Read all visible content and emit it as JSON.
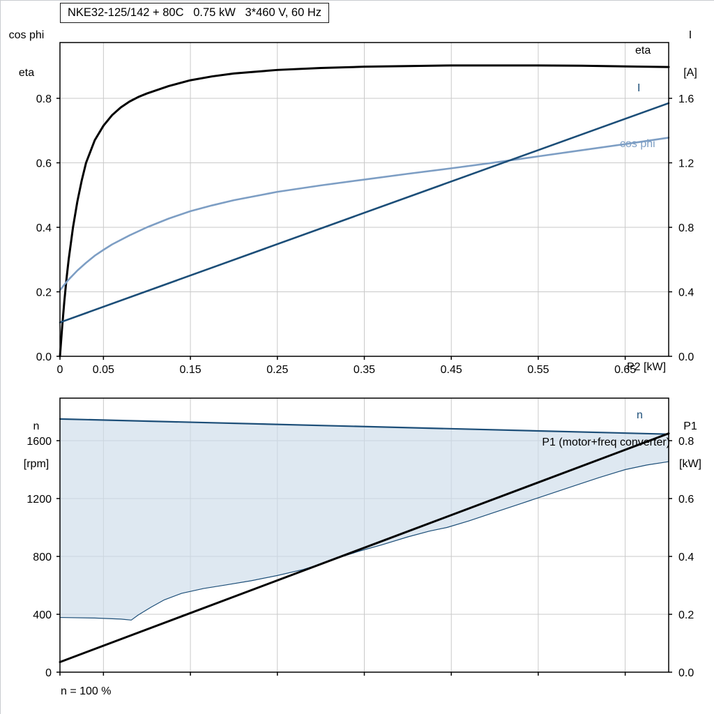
{
  "header": {
    "title": "NKE32-125/142 + 80C   0.75 kW   3*460 V, 60 Hz"
  },
  "labels": {
    "left_axis_line1": "cos phi",
    "left_axis_line2": "eta",
    "right_axis_line1": "I",
    "right_axis_line2": "[A]",
    "x_axis_label": "P2 [kW]",
    "curve_eta": "eta",
    "curve_current": "I",
    "curve_cos_phi": "cos phi",
    "bottom_left_axis_line1": "n",
    "bottom_left_axis_line2": "[rpm]",
    "bottom_right_axis_line1": "P1",
    "bottom_right_axis_line2": "[kW]",
    "curve_speed": "n",
    "curve_p1": "P1 (motor+freq converter)",
    "footnote": "n = 100 %"
  },
  "colors": {
    "black": "#000000",
    "dark_blue": "#1c4e78",
    "light_blue": "#7d9ec4",
    "area_fill": "#ccdbe9",
    "grid": "#c9c9c9"
  },
  "chart_data": [
    {
      "type": "line",
      "title": "NKE32-125/142 + 80C   0.75 kW   3*460 V, 60 Hz",
      "xlabel": "P2 [kW]",
      "ylabel_left": "cos phi / eta",
      "ylabel_right": "I [A]",
      "xlim": [
        0,
        0.7
      ],
      "ylim_left": [
        0,
        0.973
      ],
      "ylim_right": [
        0,
        1.946
      ],
      "grid": true,
      "grid_color": "#c9c9c9",
      "legend_position": "right-edge-inline-labels",
      "x_ticks": {
        "values": [
          0,
          0.05,
          0.15,
          0.25,
          0.35,
          0.45,
          0.55,
          0.65
        ],
        "labels": [
          "0",
          "0.05",
          "0.15",
          "0.25",
          "0.35",
          "0.45",
          "0.55",
          "0.65"
        ]
      },
      "left_ticks": {
        "values": [
          0,
          0.2,
          0.4,
          0.6,
          0.8
        ],
        "labels": [
          "0.0",
          "0.2",
          "0.4",
          "0.6",
          "0.8"
        ]
      },
      "right_ticks": {
        "values": [
          0,
          0.4,
          0.8,
          1.2,
          1.6
        ],
        "labels": [
          "0.0",
          "0.4",
          "0.8",
          "1.2",
          "1.6"
        ]
      },
      "series": [
        {
          "name": "eta",
          "axis": "left",
          "color": "#000000",
          "width": 3,
          "x": [
            0,
            0.0025,
            0.005,
            0.0075,
            0.01,
            0.015,
            0.02,
            0.025,
            0.03,
            0.04,
            0.05,
            0.06,
            0.07,
            0.08,
            0.09,
            0.1,
            0.125,
            0.15,
            0.175,
            0.2,
            0.25,
            0.3,
            0.35,
            0.4,
            0.45,
            0.5,
            0.55,
            0.6,
            0.65,
            0.7
          ],
          "y": [
            0,
            0.09,
            0.17,
            0.24,
            0.3,
            0.4,
            0.48,
            0.545,
            0.6,
            0.67,
            0.715,
            0.748,
            0.772,
            0.79,
            0.804,
            0.815,
            0.838,
            0.856,
            0.868,
            0.877,
            0.888,
            0.894,
            0.898,
            0.9,
            0.902,
            0.902,
            0.902,
            0.901,
            0.899,
            0.897
          ]
        },
        {
          "name": "cos phi",
          "axis": "left",
          "color": "#7d9ec4",
          "width": 2.6,
          "x": [
            0,
            0.005,
            0.01,
            0.02,
            0.03,
            0.04,
            0.05,
            0.06,
            0.08,
            0.1,
            0.125,
            0.15,
            0.175,
            0.2,
            0.25,
            0.3,
            0.35,
            0.4,
            0.45,
            0.5,
            0.55,
            0.6,
            0.65,
            0.7
          ],
          "y": [
            0.205,
            0.222,
            0.238,
            0.266,
            0.29,
            0.312,
            0.33,
            0.347,
            0.375,
            0.4,
            0.427,
            0.45,
            0.468,
            0.484,
            0.51,
            0.53,
            0.548,
            0.566,
            0.583,
            0.601,
            0.62,
            0.639,
            0.658,
            0.678
          ]
        },
        {
          "name": "I",
          "axis": "right",
          "color": "#1c4e78",
          "width": 2.6,
          "x": [
            0,
            0.7
          ],
          "y": [
            0.21,
            1.57
          ]
        }
      ]
    },
    {
      "type": "line",
      "title": "",
      "xlabel": "",
      "ylabel_left": "n [rpm]",
      "ylabel_right": "P1 [kW]",
      "annotations": [
        "n = 100 %",
        "P1 (motor+freq converter)"
      ],
      "xlim": [
        0,
        0.7
      ],
      "ylim_left": [
        0,
        1894
      ],
      "ylim_right": [
        0,
        0.947
      ],
      "grid": true,
      "grid_color": "#c9c9c9",
      "x_ticks": {
        "values": [
          0,
          0.05,
          0.15,
          0.25,
          0.35,
          0.45,
          0.55,
          0.65
        ],
        "labels": [
          "",
          "",
          "",
          "",
          "",
          "",
          "",
          ""
        ]
      },
      "left_ticks": {
        "values": [
          0,
          400,
          800,
          1200,
          1600
        ],
        "labels": [
          "0",
          "400",
          "800",
          "1200",
          "1600"
        ]
      },
      "right_ticks": {
        "values": [
          0,
          0.2,
          0.4,
          0.6,
          0.8
        ],
        "labels": [
          "0.0",
          "0.2",
          "0.4",
          "0.6",
          "0.8"
        ]
      },
      "area": {
        "name": "speed-control-envelope",
        "fill": "#ccdbe9",
        "edge": "#1c4e78",
        "upper": {
          "x": [
            0,
            0.7
          ],
          "y": [
            1750,
            1645
          ]
        },
        "lower": {
          "x": [
            0,
            0.04,
            0.07,
            0.082,
            0.09,
            0.105,
            0.12,
            0.14,
            0.165,
            0.19,
            0.22,
            0.25,
            0.28,
            0.3,
            0.32,
            0.345,
            0.37,
            0.4,
            0.425,
            0.445,
            0.47,
            0.5,
            0.53,
            0.56,
            0.59,
            0.62,
            0.65,
            0.675,
            0.7
          ],
          "y": [
            378,
            374,
            367,
            360,
            395,
            450,
            500,
            545,
            578,
            602,
            632,
            668,
            710,
            748,
            790,
            838,
            880,
            935,
            975,
            1000,
            1045,
            1105,
            1165,
            1225,
            1285,
            1345,
            1400,
            1432,
            1455
          ]
        }
      },
      "series": [
        {
          "name": "n",
          "axis": "left",
          "color": "#1c4e78",
          "width": 2.2,
          "x": [
            0,
            0.7
          ],
          "y": [
            1750,
            1645
          ]
        },
        {
          "name": "P1 (motor+freq converter)",
          "axis": "right",
          "color": "#000000",
          "width": 3,
          "x": [
            0,
            0.7
          ],
          "y": [
            0.035,
            0.825
          ]
        }
      ]
    }
  ]
}
